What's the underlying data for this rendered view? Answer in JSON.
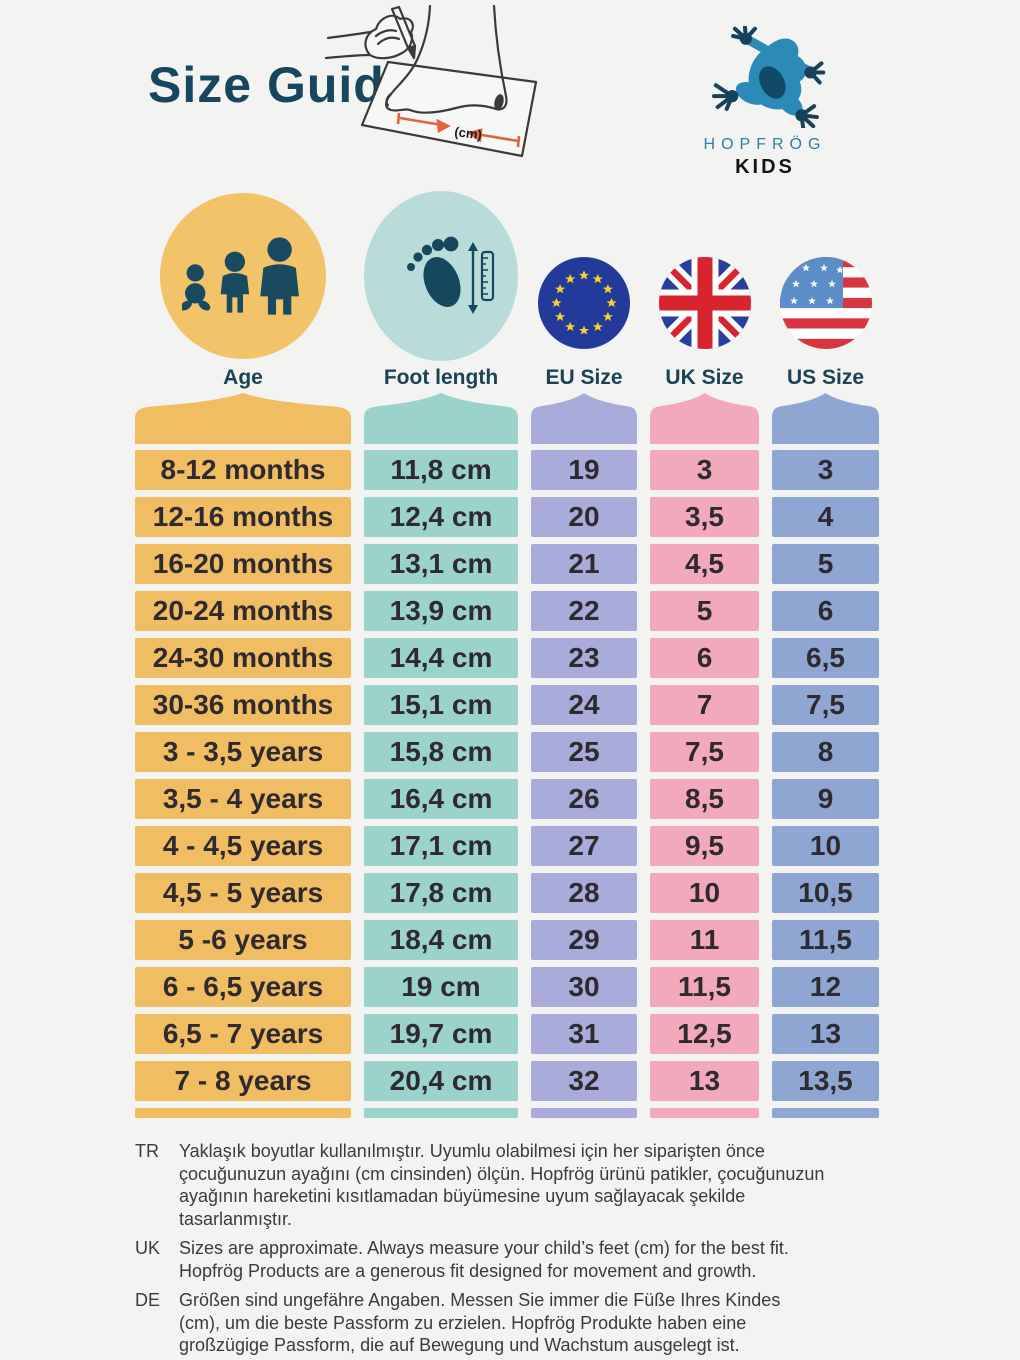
{
  "page": {
    "title": "Size Guide",
    "background": "#f3f3f1"
  },
  "brand": {
    "line1": "HOPFRÖG",
    "line2": "KIDS"
  },
  "illustration": {
    "cm_label": "(cm)"
  },
  "colors": {
    "title_text": "#17465e",
    "column_label_text": "#1b4356",
    "cell_text": "#2e2a30",
    "age_circle": "#f2c368",
    "foot_circle": "#b9dbd9",
    "frog_blue": "#2c8ab7",
    "frog_navy": "#16425c",
    "arrow_orange": "#e0653c"
  },
  "table": {
    "columns": [
      {
        "id": "age",
        "label": "Age",
        "color": "#f1bd62",
        "icon": "family-icon"
      },
      {
        "id": "foot",
        "label": "Foot length",
        "color": "#9bd2cb",
        "icon": "foot-measure-icon"
      },
      {
        "id": "eu",
        "label": "EU Size",
        "color": "#a9abdb",
        "icon": "eu-flag-icon"
      },
      {
        "id": "uk",
        "label": "UK Size",
        "color": "#f2a9bc",
        "icon": "uk-flag-icon"
      },
      {
        "id": "us",
        "label": "US Size",
        "color": "#8fa6d3",
        "icon": "us-flag-icon"
      }
    ],
    "rows": [
      [
        "8-12 months",
        "11,8 cm",
        "19",
        "3",
        "3"
      ],
      [
        "12-16 months",
        "12,4 cm",
        "20",
        "3,5",
        "4"
      ],
      [
        "16-20 months",
        "13,1 cm",
        "21",
        "4,5",
        "5"
      ],
      [
        "20-24 months",
        "13,9 cm",
        "22",
        "5",
        "6"
      ],
      [
        "24-30 months",
        "14,4 cm",
        "23",
        "6",
        "6,5"
      ],
      [
        "30-36 months",
        "15,1 cm",
        "24",
        "7",
        "7,5"
      ],
      [
        "3 - 3,5 years",
        "15,8 cm",
        "25",
        "7,5",
        "8"
      ],
      [
        "3,5 - 4 years",
        "16,4 cm",
        "26",
        "8,5",
        "9"
      ],
      [
        "4 - 4,5 years",
        "17,1 cm",
        "27",
        "9,5",
        "10"
      ],
      [
        "4,5 - 5 years",
        "17,8 cm",
        "28",
        "10",
        "10,5"
      ],
      [
        "5 -6 years",
        "18,4 cm",
        "29",
        "11",
        "11,5"
      ],
      [
        "6 - 6,5 years",
        "19 cm",
        "30",
        "11,5",
        "12"
      ],
      [
        "6,5 - 7 years",
        "19,7 cm",
        "31",
        "12,5",
        "13"
      ],
      [
        "7 - 8 years",
        "20,4 cm",
        "32",
        "13",
        "13,5"
      ]
    ]
  },
  "notes": [
    {
      "lang": "TR",
      "text": "Yaklaşık boyutlar kullanılmıştır. Uyumlu olabilmesi için her siparişten önce çocuğunuzun ayağını (cm cinsinden) ölçün. Hopfrög ürünü patikler, çocuğunuzun ayağının hareketini kısıtlamadan büyümesine uyum sağlayacak şekilde tasarlanmıştır."
    },
    {
      "lang": "UK",
      "text": "Sizes are approximate. Always measure your child’s feet (cm) for the best fit. Hopfrög Products are a generous fit designed for movement and growth."
    },
    {
      "lang": "DE",
      "text": "Größen sind ungefähre Angaben. Messen Sie immer die Füße Ihres Kindes (cm), um die beste Passform zu erzielen. Hopfrög Produkte haben eine großzügige Passform, die auf Bewegung und Wachstum ausgelegt ist."
    }
  ]
}
